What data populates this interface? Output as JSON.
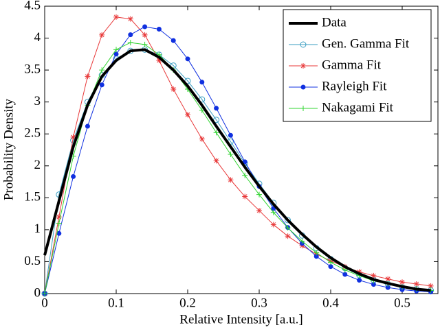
{
  "chart_data": {
    "type": "line",
    "x_label": "Relative Intensity [a.u.]",
    "y_label": "Probability Density",
    "x": [
      0,
      0.02,
      0.04,
      0.06,
      0.08,
      0.1,
      0.12,
      0.14,
      0.16,
      0.18,
      0.2,
      0.22,
      0.24,
      0.26,
      0.28,
      0.3,
      0.32,
      0.34,
      0.36,
      0.38,
      0.4,
      0.42,
      0.44,
      0.46,
      0.48,
      0.5,
      0.52,
      0.54
    ],
    "series": [
      {
        "name": "Data",
        "color": "#000000",
        "marker": "none",
        "line_width": 4,
        "values": [
          0.6,
          1.45,
          2.3,
          2.95,
          3.4,
          3.65,
          3.8,
          3.82,
          3.7,
          3.5,
          3.25,
          2.95,
          2.62,
          2.3,
          1.98,
          1.68,
          1.4,
          1.15,
          0.93,
          0.73,
          0.56,
          0.42,
          0.31,
          0.22,
          0.16,
          0.11,
          0.07,
          0.05
        ]
      },
      {
        "name": "Gen. Gamma Fit",
        "color": "#3a9ec2",
        "marker": "circle",
        "line_width": 1,
        "values": [
          0,
          1.55,
          2.4,
          3.0,
          3.42,
          3.68,
          3.8,
          3.82,
          3.74,
          3.57,
          3.33,
          3.04,
          2.72,
          2.38,
          2.04,
          1.72,
          1.42,
          1.15,
          0.91,
          0.71,
          0.54,
          0.4,
          0.29,
          0.21,
          0.15,
          0.1,
          0.07,
          0.05
        ]
      },
      {
        "name": "Gamma Fit",
        "color": "#e8393a",
        "marker": "asterisk",
        "line_width": 1,
        "values": [
          0,
          1.2,
          2.45,
          3.4,
          4.05,
          4.33,
          4.3,
          4.05,
          3.65,
          3.2,
          2.8,
          2.42,
          2.08,
          1.78,
          1.52,
          1.3,
          1.08,
          0.9,
          0.75,
          0.62,
          0.51,
          0.42,
          0.34,
          0.28,
          0.23,
          0.18,
          0.15,
          0.12
        ]
      },
      {
        "name": "Rayleigh Fit",
        "color": "#1030e0",
        "marker": "dot",
        "line_width": 1,
        "values": [
          0,
          0.942,
          1.832,
          2.62,
          3.268,
          3.75,
          4.053,
          4.178,
          4.14,
          3.962,
          3.675,
          3.31,
          2.902,
          2.478,
          2.064,
          1.678,
          1.333,
          1.035,
          0.786,
          0.583,
          0.423,
          0.301,
          0.209,
          0.143,
          0.095,
          0.062,
          0.04,
          0.025
        ]
      },
      {
        "name": "Nakagami Fit",
        "color": "#2fd42f",
        "marker": "plus",
        "line_width": 1,
        "values": [
          0,
          1.1,
          2.15,
          2.95,
          3.5,
          3.82,
          3.93,
          3.9,
          3.74,
          3.5,
          3.2,
          2.87,
          2.52,
          2.18,
          1.85,
          1.55,
          1.27,
          1.03,
          0.82,
          0.64,
          0.49,
          0.37,
          0.28,
          0.2,
          0.15,
          0.1,
          0.07,
          0.05
        ]
      }
    ],
    "xlim": [
      0,
      0.55
    ],
    "xticks": [
      0,
      0.1,
      0.2,
      0.3,
      0.4,
      0.5
    ],
    "ylim": [
      0,
      4.5
    ],
    "yticks": [
      0,
      0.5,
      1,
      1.5,
      2,
      2.5,
      3,
      3.5,
      4,
      4.5
    ],
    "legend": "upper right",
    "grid": false
  }
}
